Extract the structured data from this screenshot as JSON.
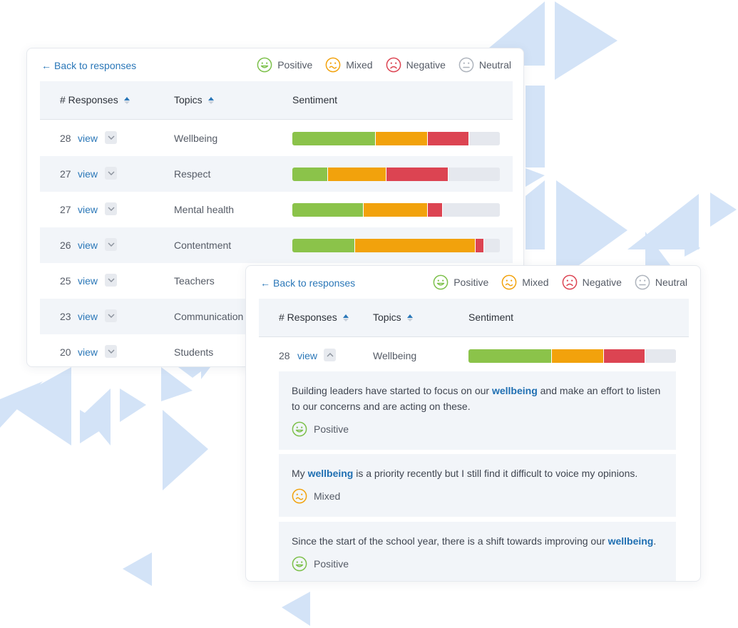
{
  "colors": {
    "positive": "#8bc34a",
    "mixed": "#f2a20c",
    "negative": "#dc4452",
    "neutral": "#e5e8ee",
    "link": "#2a77b8",
    "decor": "#d3e3f7"
  },
  "legend": [
    {
      "label": "Positive",
      "icon": "smile-face-icon",
      "color": "#7cc04a"
    },
    {
      "label": "Mixed",
      "icon": "wavy-face-icon",
      "color": "#f2a20c"
    },
    {
      "label": "Negative",
      "icon": "sad-face-icon",
      "color": "#dc4452"
    },
    {
      "label": "Neutral",
      "icon": "neutral-face-icon",
      "color": "#aeb4bd"
    }
  ],
  "back_label": "Back to responses",
  "columns": {
    "responses": "# Responses",
    "topics": "Topics",
    "sentiment": "Sentiment"
  },
  "view_label": "view",
  "topics": [
    {
      "count": "28",
      "topic": "Wellbeing",
      "sentiment": {
        "positive": 0.4,
        "mixed": 0.25,
        "negative": 0.2,
        "neutral": 0.15
      }
    },
    {
      "count": "27",
      "topic": "Respect",
      "sentiment": {
        "positive": 0.17,
        "mixed": 0.28,
        "negative": 0.3,
        "neutral": 0.25
      }
    },
    {
      "count": "27",
      "topic": "Mental health",
      "sentiment": {
        "positive": 0.34,
        "mixed": 0.31,
        "negative": 0.07,
        "neutral": 0.28
      }
    },
    {
      "count": "26",
      "topic": "Contentment",
      "sentiment": {
        "positive": 0.3,
        "mixed": 0.58,
        "negative": 0.04,
        "neutral": 0.08
      }
    },
    {
      "count": "25",
      "topic": "Teachers"
    },
    {
      "count": "23",
      "topic": "Communication"
    },
    {
      "count": "20",
      "topic": "Students"
    }
  ],
  "detail": {
    "count": "28",
    "topic": "Wellbeing",
    "sentiment": {
      "positive": 0.4,
      "mixed": 0.25,
      "negative": 0.2,
      "neutral": 0.15
    },
    "responses": [
      {
        "text_before": "Building leaders have started to focus on our ",
        "highlight": "wellbeing",
        "text_after": " and make an effort to listen to our concerns and are acting on these.",
        "sentiment_label": "Positive",
        "sentiment_icon": "smile-face-icon"
      },
      {
        "text_before": "My ",
        "highlight": "wellbeing",
        "text_after": " is a priority recently but I still find it difficult to voice my opinions.",
        "sentiment_label": "Mixed",
        "sentiment_icon": "wavy-face-icon"
      },
      {
        "text_before": "Since the start of the school year, there is a shift towards improving our ",
        "highlight": "wellbeing",
        "text_after": ".",
        "sentiment_label": "Positive",
        "sentiment_icon": "smile-face-icon"
      }
    ]
  }
}
